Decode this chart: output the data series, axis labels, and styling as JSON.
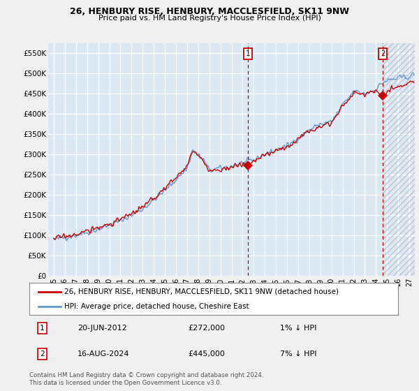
{
  "title1": "26, HENBURY RISE, HENBURY, MACCLESFIELD, SK11 9NW",
  "title2": "Price paid vs. HM Land Registry's House Price Index (HPI)",
  "ylabel_ticks": [
    "£0",
    "£50K",
    "£100K",
    "£150K",
    "£200K",
    "£250K",
    "£300K",
    "£350K",
    "£400K",
    "£450K",
    "£500K",
    "£550K"
  ],
  "ytick_vals": [
    0,
    50000,
    100000,
    150000,
    200000,
    250000,
    300000,
    350000,
    400000,
    450000,
    500000,
    550000
  ],
  "ylim": [
    0,
    575000
  ],
  "xlim_start": 1994.5,
  "xlim_end": 2027.5,
  "xtick_years": [
    1995,
    1996,
    1997,
    1998,
    1999,
    2000,
    2001,
    2002,
    2003,
    2004,
    2005,
    2006,
    2007,
    2008,
    2009,
    2010,
    2011,
    2012,
    2013,
    2014,
    2015,
    2016,
    2017,
    2018,
    2019,
    2020,
    2021,
    2022,
    2023,
    2024,
    2025,
    2026,
    2027
  ],
  "xtick_labels": [
    "95",
    "96",
    "97",
    "98",
    "99",
    "00",
    "01",
    "02",
    "03",
    "04",
    "05",
    "06",
    "07",
    "08",
    "09",
    "10",
    "11",
    "12",
    "13",
    "14",
    "15",
    "16",
    "17",
    "18",
    "19",
    "20",
    "21",
    "22",
    "23",
    "24",
    "25",
    "26",
    "27"
  ],
  "legend_label_red": "26, HENBURY RISE, HENBURY, MACCLESFIELD, SK11 9NW (detached house)",
  "legend_label_blue": "HPI: Average price, detached house, Cheshire East",
  "note1_num": "1",
  "note1_date": "20-JUN-2012",
  "note1_price": "£272,000",
  "note1_hpi": "1% ↓ HPI",
  "note1_year": 2012.46,
  "note1_value": 272000,
  "note2_num": "2",
  "note2_date": "16-AUG-2024",
  "note2_price": "£445,000",
  "note2_hpi": "7% ↓ HPI",
  "note2_year": 2024.62,
  "note2_value": 445000,
  "footer": "Contains HM Land Registry data © Crown copyright and database right 2024.\nThis data is licensed under the Open Government Licence v3.0.",
  "red_color": "#cc0000",
  "blue_color": "#6699cc",
  "bg_color": "#f0f0f0",
  "plot_bg": "#dce9f5",
  "grid_color": "#bbccdd",
  "hatch_color": "#c0c8d8"
}
